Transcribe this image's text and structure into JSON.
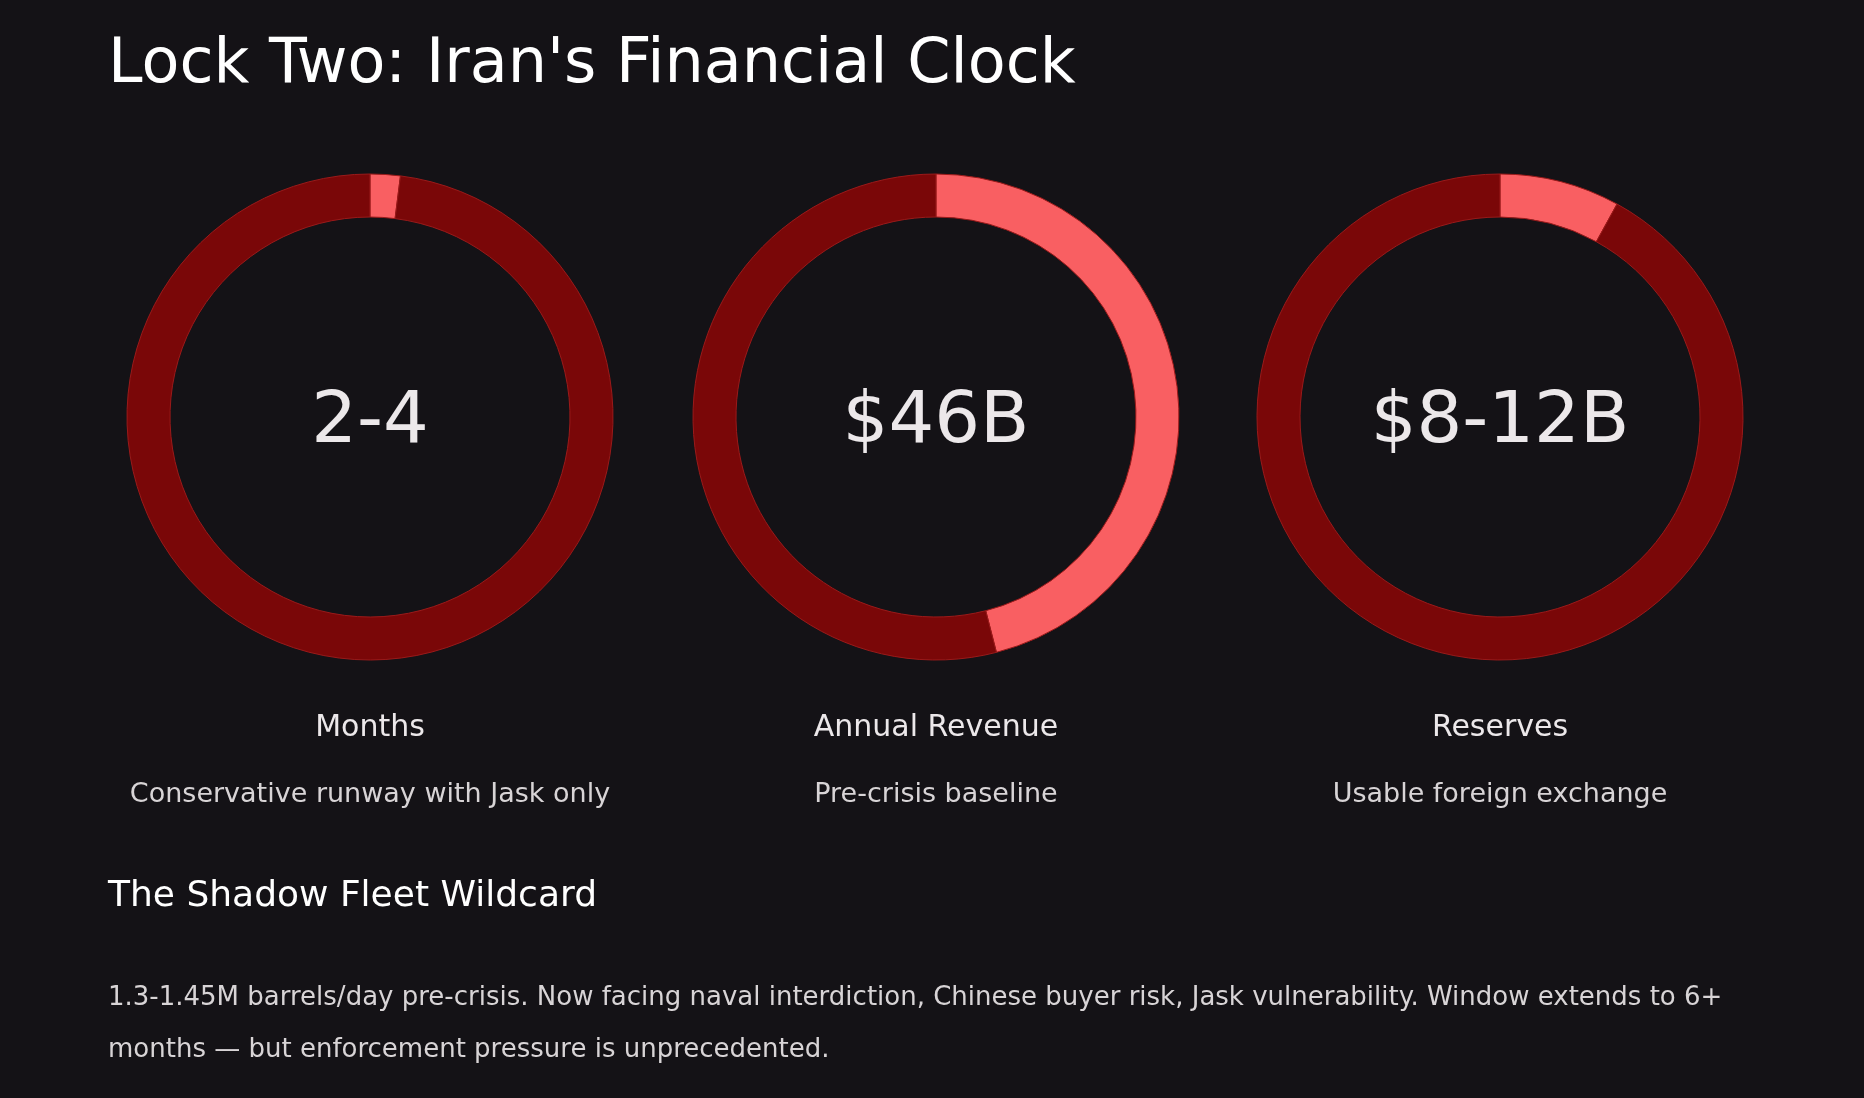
{
  "chart_data": [
    {
      "type": "other",
      "title": "Lock Two: Iran's Financial Clock"
    },
    {
      "type": "donut",
      "title": "Months",
      "subtitle": "Conservative runway with Jask only",
      "annotations": [
        "2-4"
      ],
      "categories": [
        null,
        null
      ],
      "values": [
        2,
        98
      ],
      "colors": [
        "#f95f62",
        "#7a0708"
      ]
    },
    {
      "type": "donut",
      "title": "Annual Revenue",
      "subtitle": "Pre-crisis baseline",
      "annotations": [
        "$46B"
      ],
      "categories": [
        null,
        null
      ],
      "values": [
        46,
        54
      ],
      "colors": [
        "#f95f62",
        "#7a0708"
      ]
    },
    {
      "type": "donut",
      "title": "Reserves",
      "subtitle": "Usable foreign exchange",
      "annotations": [
        "$8-12B"
      ],
      "categories": [
        null,
        null
      ],
      "values": [
        8,
        92
      ],
      "colors": [
        "#f95f62",
        "#7a0708"
      ]
    },
    {
      "type": "other",
      "title": "The Shadow Fleet Wildcard",
      "annotations": [
        "1.3-1.45M barrels/day pre-crisis. Now facing naval interdiction, Chinese buyer risk, Jask vulnerability. Window extends to 6+ months — but enforcement pressure is unprecedented."
      ]
    }
  ]
}
